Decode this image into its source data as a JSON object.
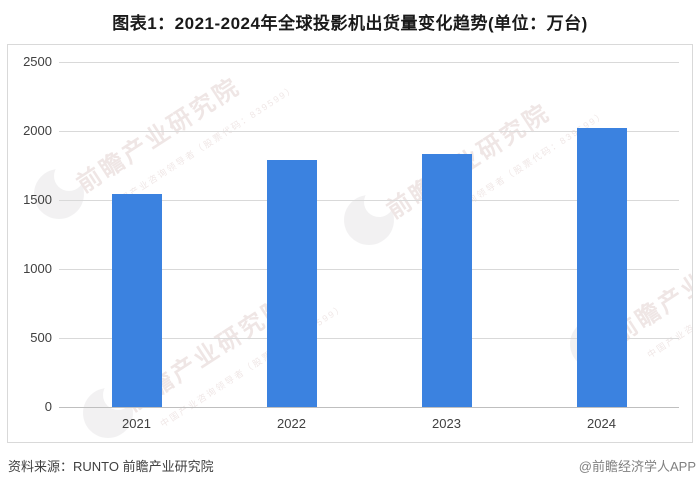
{
  "title": "图表1：2021-2024年全球投影机出货量变化趋势(单位：万台)",
  "footer": {
    "source": "资料来源：RUNTO 前瞻产业研究院",
    "credit": "@前瞻经济学人APP"
  },
  "watermark": {
    "text": "前瞻产业研究院",
    "subtext": "中国产业咨询领导者（股票代码：839599）"
  },
  "colors": {
    "bar": "#3B82E0",
    "grid": "#D9D9D9",
    "zero_line": "#BFBFBF",
    "frame_border": "#D9D9D9",
    "axis_text": "#404040",
    "title_text": "#1A1A1A",
    "credit_text": "#808080",
    "watermark": "#B8918E"
  },
  "chart_data": {
    "type": "bar",
    "title": "图表1：2021-2024年全球投影机出货量变化趋势(单位：万台)",
    "categories": [
      "2021",
      "2022",
      "2023",
      "2024"
    ],
    "values": [
      1543,
      1790,
      1830,
      2025
    ],
    "unit": "万台",
    "xlabel": "",
    "ylabel": "",
    "ylim": [
      0,
      2500
    ],
    "yticks": [
      0,
      500,
      1000,
      1500,
      2000,
      2500
    ],
    "grid": true,
    "legend": false,
    "bar_color": "#3B82E0"
  }
}
